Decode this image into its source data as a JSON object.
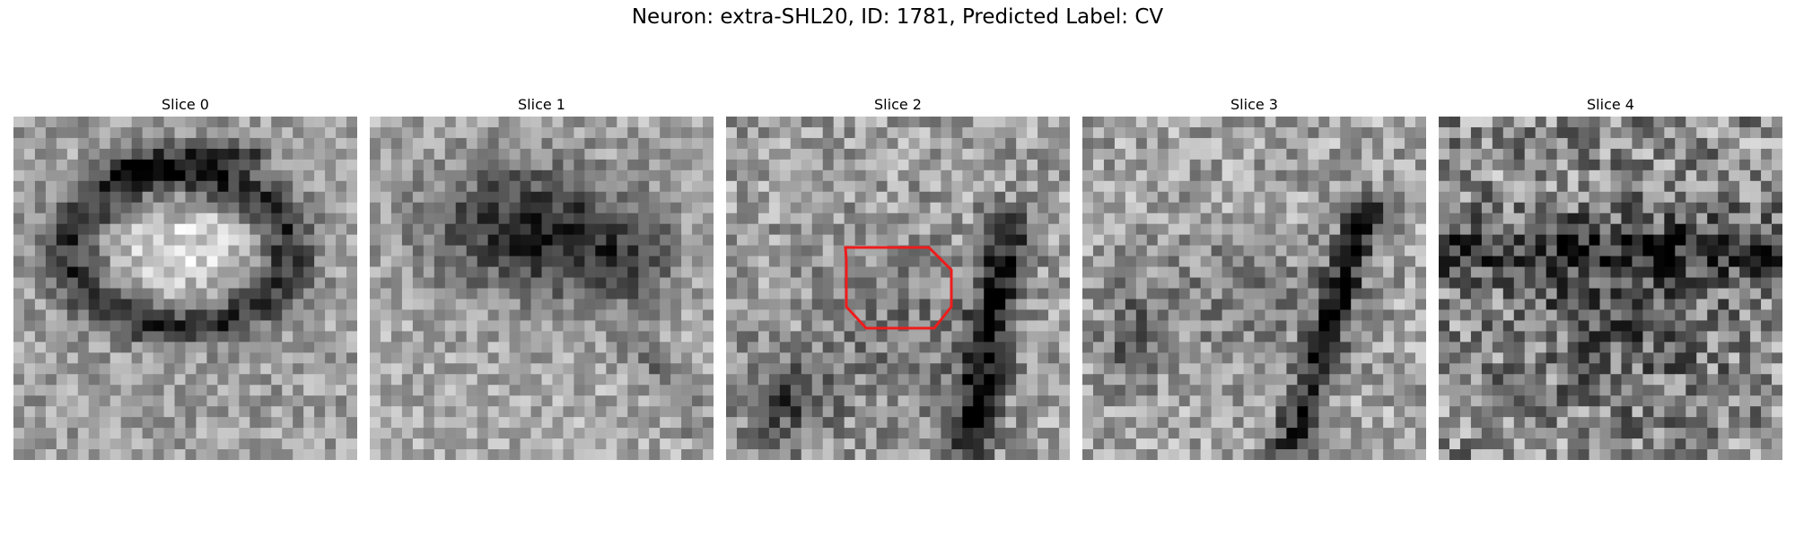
{
  "figure": {
    "title": "Neuron: extra-SHL20, ID: 1781, Predicted Label: CV"
  },
  "slices": [
    {
      "title": "Slice 0"
    },
    {
      "title": "Slice 1"
    },
    {
      "title": "Slice 2"
    },
    {
      "title": "Slice 3"
    },
    {
      "title": "Slice 4"
    }
  ],
  "overlay": {
    "slice_index": 2,
    "shape": "octagon",
    "stroke_color": "#ee1c1c"
  },
  "colormap": "gray"
}
